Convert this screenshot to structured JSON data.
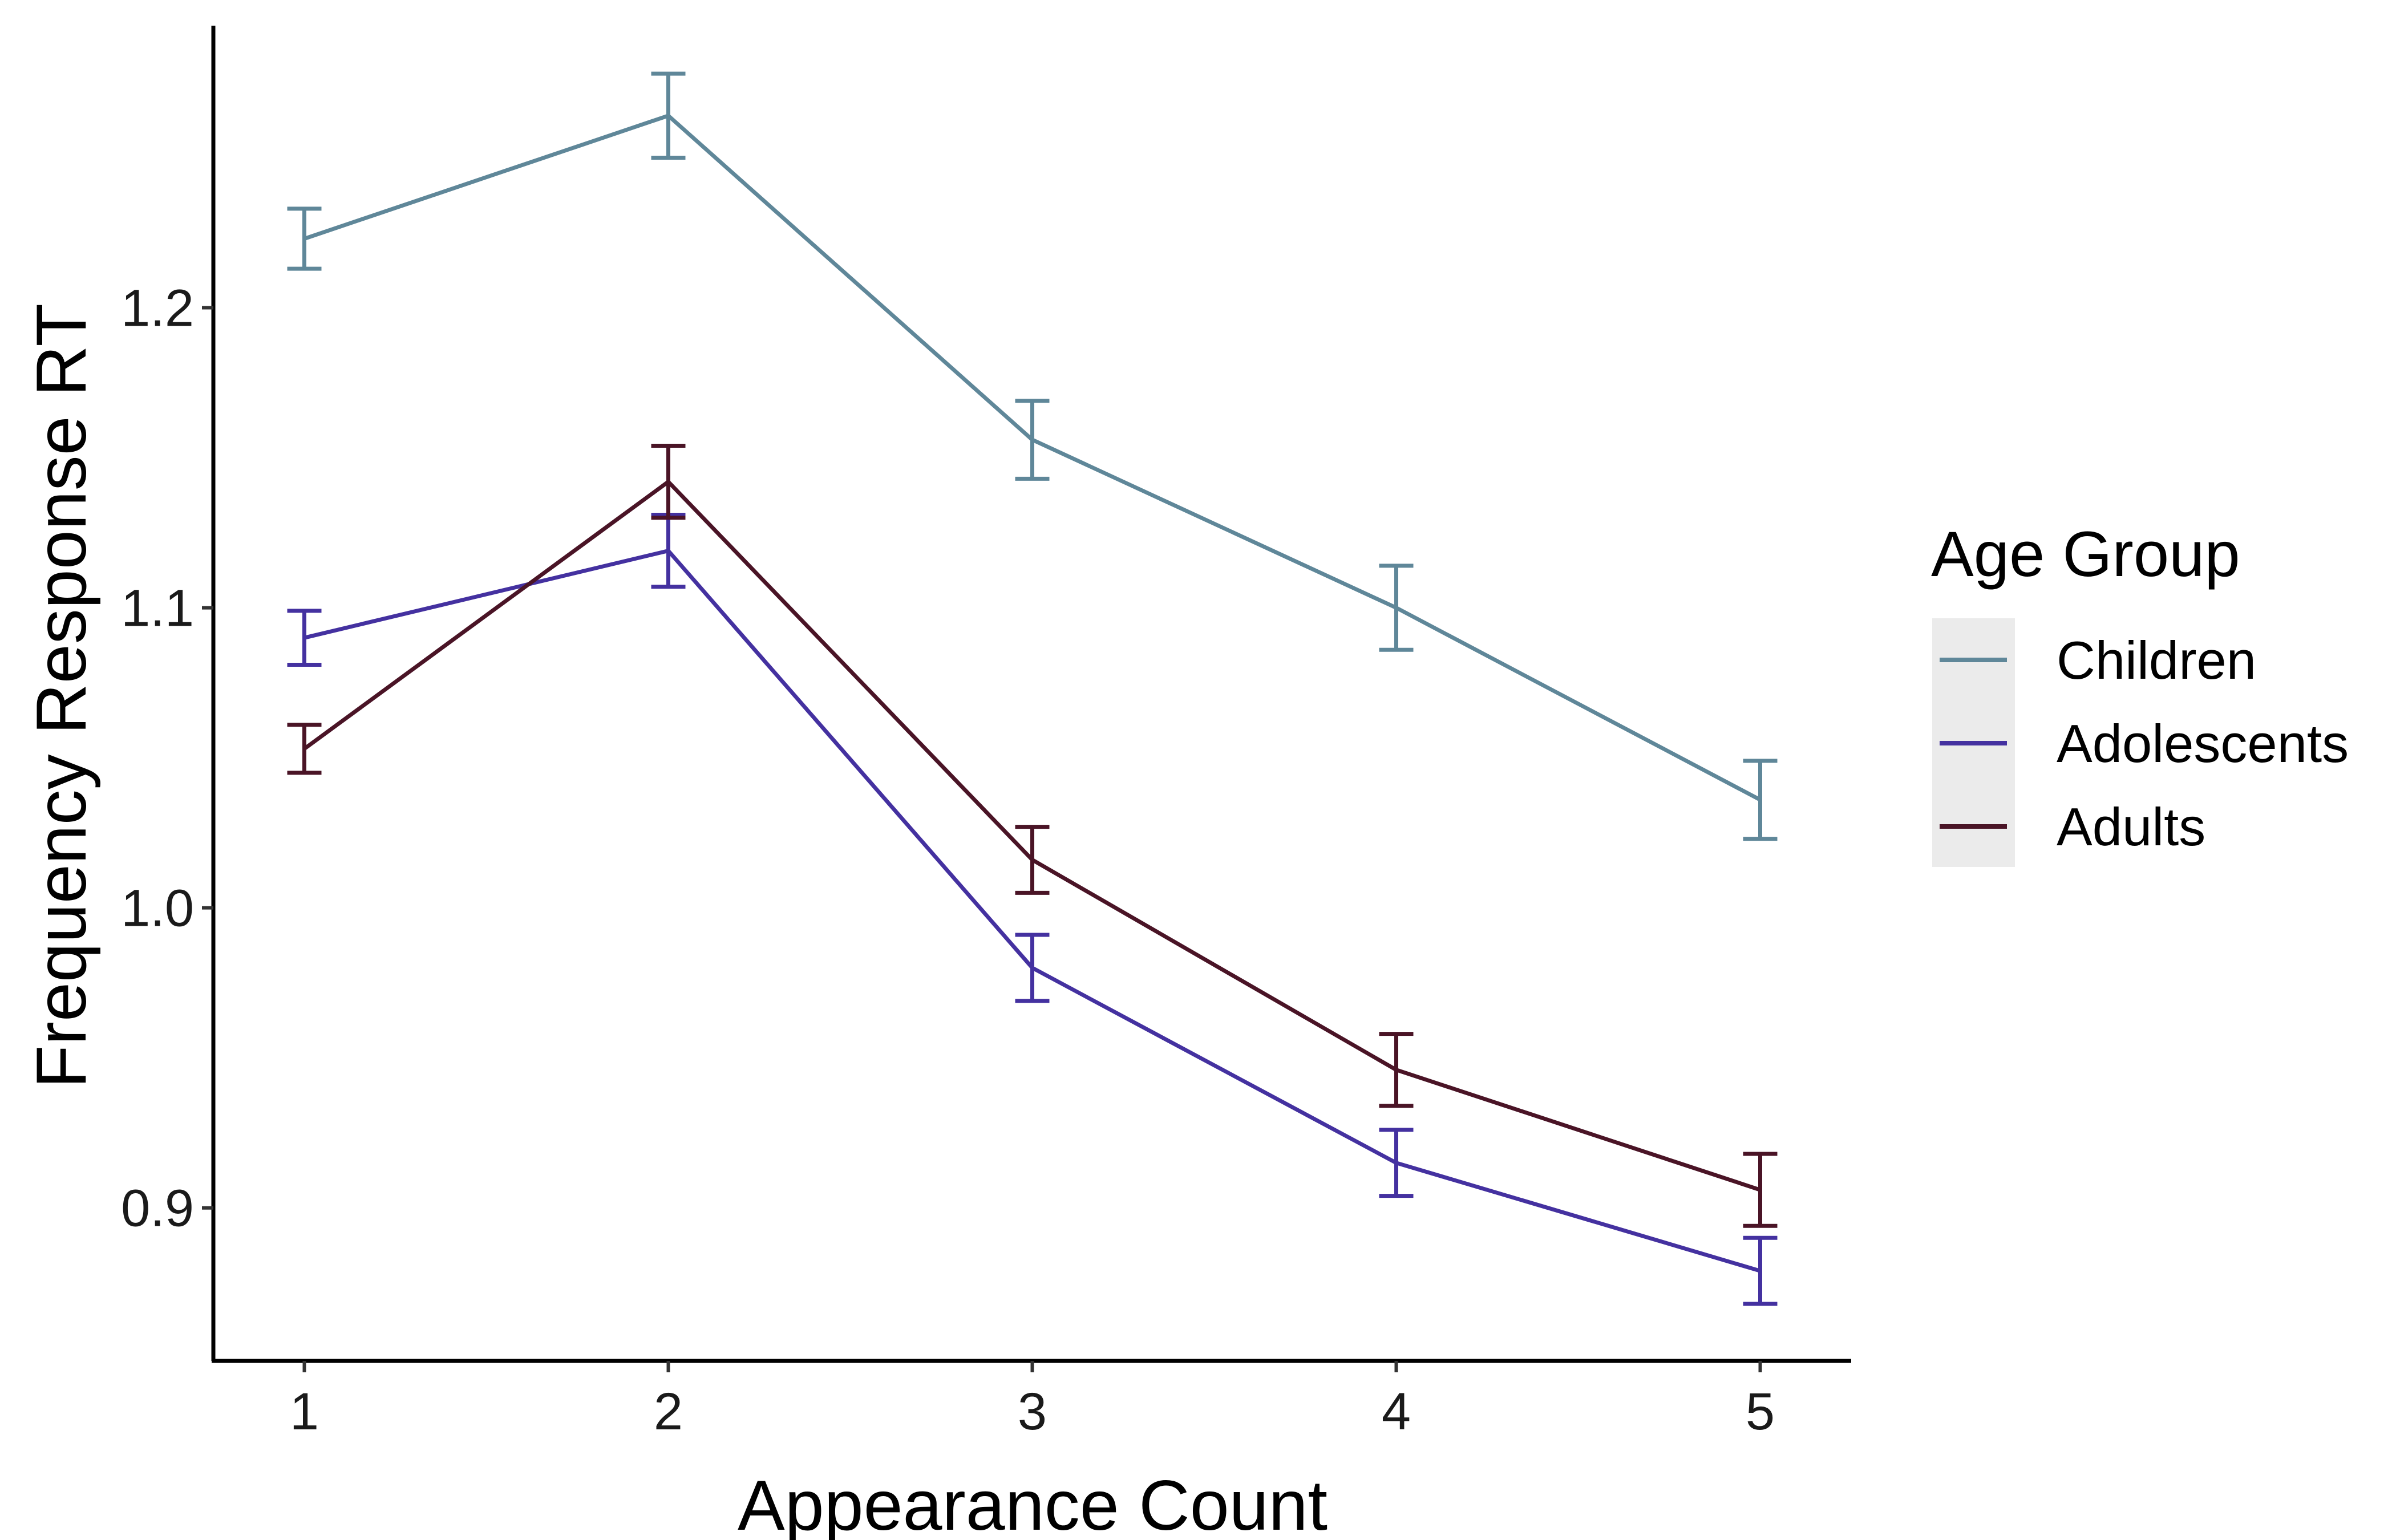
{
  "chart_data": {
    "type": "line",
    "xlabel": "Appearance Count",
    "ylabel": "Frequency Response RT",
    "x": [
      1,
      2,
      3,
      4,
      5
    ],
    "x_ticks": [
      "1",
      "2",
      "3",
      "4",
      "5"
    ],
    "xlim": [
      0.75,
      5.25
    ],
    "y_ticks": [
      "0.9",
      "1.0",
      "1.1",
      "1.2"
    ],
    "ylim": [
      0.849,
      1.294
    ],
    "grid": false,
    "legend": {
      "title": "Age Group",
      "position": "right"
    },
    "series": [
      {
        "name": "Children",
        "color": "#5f8799",
        "values": [
          1.223,
          1.264,
          1.156,
          1.1,
          1.036
        ],
        "err": [
          0.01,
          0.014,
          0.013,
          0.014,
          0.013
        ]
      },
      {
        "name": "Adolescents",
        "color": "#4431a0",
        "values": [
          1.09,
          1.119,
          0.98,
          0.915,
          0.879
        ],
        "err": [
          0.009,
          0.012,
          0.011,
          0.011,
          0.011
        ]
      },
      {
        "name": "Adults",
        "color": "#4a1426",
        "values": [
          1.053,
          1.142,
          1.016,
          0.946,
          0.906
        ],
        "err": [
          0.008,
          0.012,
          0.011,
          0.012,
          0.012
        ]
      }
    ]
  }
}
